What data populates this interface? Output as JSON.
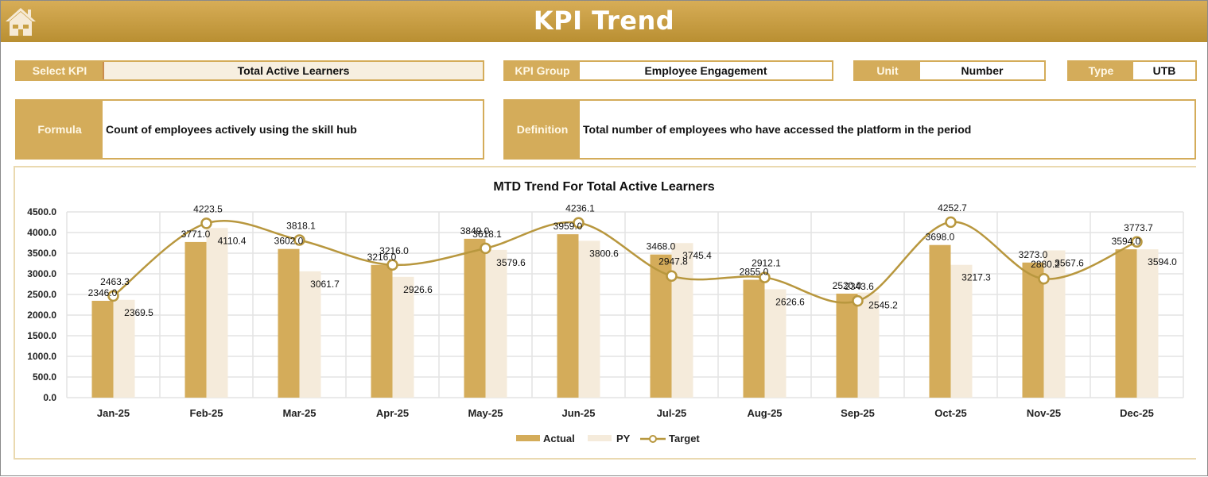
{
  "header": {
    "title": "KPI Trend",
    "home_icon": "home-icon"
  },
  "filters": {
    "select_kpi": {
      "label": "Select KPI",
      "value": "Total Active Learners"
    },
    "kpi_group": {
      "label": "KPI Group",
      "value": "Employee Engagement"
    },
    "unit": {
      "label": "Unit",
      "value": "Number"
    },
    "type": {
      "label": "Type",
      "value": "UTB"
    }
  },
  "formula": {
    "label": "Formula",
    "value": "Count of employees actively using the skill hub"
  },
  "definition": {
    "label": "Definition",
    "value": "Total number of employees who have accessed the platform in the period"
  },
  "colors": {
    "actual": "#d4ac5a",
    "py": "#f5ebdb",
    "target": "#b8973e",
    "header": "#c9a045"
  },
  "chart_data": {
    "type": "bar",
    "title": "MTD Trend For Total Active Learners",
    "xlabel": "",
    "ylabel": "",
    "ylim": [
      0,
      4500
    ],
    "yticks": [
      "0.0",
      "500.0",
      "1000.0",
      "1500.0",
      "2000.0",
      "2500.0",
      "3000.0",
      "3500.0",
      "4000.0",
      "4500.0"
    ],
    "grid": true,
    "legend_position": "bottom",
    "categories": [
      "Jan-25",
      "Feb-25",
      "Mar-25",
      "Apr-25",
      "May-25",
      "Jun-25",
      "Jul-25",
      "Aug-25",
      "Sep-25",
      "Oct-25",
      "Nov-25",
      "Dec-25"
    ],
    "series": [
      {
        "name": "Actual",
        "type": "bar",
        "values": [
          2346.0,
          3771.0,
          3602.0,
          3216.0,
          3849.0,
          3959.0,
          3468.0,
          2855.0,
          2520.0,
          3698.0,
          3273.0,
          3594.0
        ]
      },
      {
        "name": "PY",
        "type": "bar",
        "values": [
          2369.5,
          4110.4,
          3061.7,
          2926.6,
          3579.6,
          3800.6,
          3745.4,
          2626.6,
          2545.2,
          3217.3,
          3567.6,
          3594.0
        ]
      },
      {
        "name": "Target",
        "type": "line",
        "values": [
          2463.3,
          4223.5,
          3818.1,
          3216.0,
          3618.1,
          4236.1,
          2947.8,
          2912.1,
          2343.6,
          4252.7,
          2880.2,
          3773.7
        ]
      }
    ]
  }
}
